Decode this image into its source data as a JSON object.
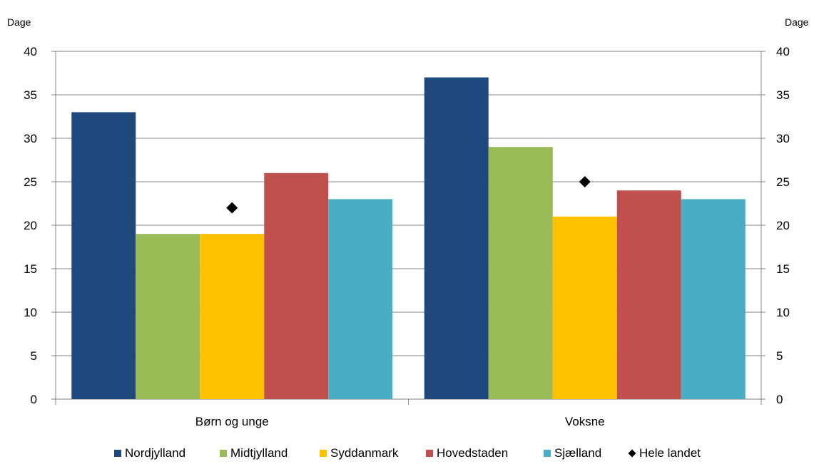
{
  "chart_data": {
    "type": "bar",
    "title": "",
    "xlabel": "",
    "ylabel_left": "Dage",
    "ylabel_right": "Dage",
    "ylim": [
      0,
      40
    ],
    "yticks": [
      0,
      5,
      10,
      15,
      20,
      25,
      30,
      35,
      40
    ],
    "grid": true,
    "legend_position": "bottom",
    "categories": [
      "Børn og unge",
      "Voksne"
    ],
    "series": [
      {
        "name": "Nordjylland",
        "type": "bar",
        "color": "#1F497D",
        "values": [
          33,
          37
        ]
      },
      {
        "name": "Midtjylland",
        "type": "bar",
        "color": "#9BBB59",
        "values": [
          19,
          29
        ]
      },
      {
        "name": "Syddanmark",
        "type": "bar",
        "color": "#FFC000",
        "values": [
          19,
          21
        ]
      },
      {
        "name": "Hovedstaden",
        "type": "bar",
        "color": "#C0504D",
        "values": [
          26,
          24
        ]
      },
      {
        "name": "Sjælland",
        "type": "bar",
        "color": "#4BACC6",
        "values": [
          23,
          23
        ]
      }
    ],
    "markers": [
      {
        "name": "Hele landet",
        "type": "marker",
        "marker": "diamond",
        "color": "#000000",
        "values": [
          22,
          25
        ]
      }
    ]
  }
}
